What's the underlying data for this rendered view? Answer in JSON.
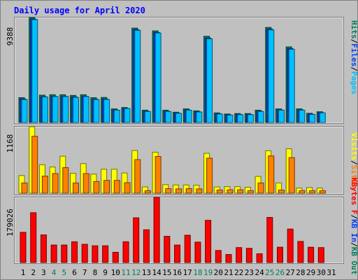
{
  "chart_data": {
    "type": "bar",
    "title": "Daily usage for April 2020",
    "days": [
      1,
      2,
      3,
      4,
      5,
      6,
      7,
      8,
      9,
      10,
      11,
      12,
      13,
      14,
      15,
      16,
      17,
      18,
      19,
      20,
      21,
      22,
      23,
      24,
      25,
      26,
      27,
      28,
      29,
      30,
      31
    ],
    "weekend_days": [
      4,
      5,
      11,
      12,
      18,
      19,
      25,
      26
    ],
    "colors": {
      "background": "#c0c0c0",
      "frame": "#808080",
      "title": "#0000ff",
      "hits": "#00805c",
      "files": "#0040ff",
      "pages": "#00c0ff",
      "visits": "#ffff00",
      "sites": "#ff8000",
      "kbin": "#0040ff",
      "kbout": "#00805c",
      "kbf": "#ff0000",
      "weekday_label": "#000000",
      "weekend_label": "#00805c"
    },
    "panels": [
      {
        "name": "hits-files-pages",
        "ytick": "9388",
        "ymax": 9388,
        "legend": [
          {
            "text": "Hits",
            "color_key": "hits"
          },
          {
            "text": "/",
            "color_key": "weekday_label"
          },
          {
            "text": "Files",
            "color_key": "files"
          },
          {
            "text": "/",
            "color_key": "weekday_label"
          },
          {
            "text": "Pages",
            "color_key": "pages"
          }
        ],
        "series": [
          {
            "name": "Hits",
            "color_key": "hits",
            "values": [
              2220,
              9388,
              2440,
              2480,
              2480,
              2420,
              2480,
              2220,
              2240,
              1220,
              1340,
              8440,
              1100,
              8190,
              1100,
              920,
              1220,
              1040,
              7710,
              860,
              760,
              800,
              800,
              1100,
              8500,
              1220,
              6760,
              1220,
              820,
              960,
              0
            ]
          },
          {
            "name": "Files",
            "color_key": "files",
            "values": [
              2100,
              9250,
              2300,
              2340,
              2340,
              2280,
              2340,
              2080,
              2100,
              1120,
              1260,
              8300,
              1000,
              8050,
              1000,
              840,
              1120,
              960,
              7550,
              780,
              680,
              720,
              720,
              1000,
              8350,
              1120,
              6600,
              1120,
              740,
              880,
              0
            ]
          },
          {
            "name": "Pages",
            "color_key": "pages",
            "values": [
              2050,
              9200,
              2280,
              2320,
              2320,
              2240,
              2320,
              2050,
              2060,
              1100,
              1250,
              8240,
              980,
              8000,
              980,
              820,
              1100,
              940,
              7480,
              760,
              660,
              700,
              700,
              980,
              8280,
              1100,
              6540,
              1100,
              720,
              860,
              0
            ]
          }
        ]
      },
      {
        "name": "visits-sites",
        "ytick": "1168",
        "ymax": 1168,
        "legend": [
          {
            "text": "Visits",
            "color_key": "visits"
          },
          {
            "text": "/",
            "color_key": "weekday_label"
          },
          {
            "text": "Sites",
            "color_key": "sites"
          }
        ],
        "series": [
          {
            "name": "Visits",
            "color_key": "visits",
            "values": [
              310,
              1168,
              500,
              460,
              650,
              350,
              520,
              335,
              420,
              420,
              355,
              750,
              110,
              720,
              150,
              145,
              145,
              140,
              700,
              110,
              115,
              115,
              105,
              295,
              745,
              180,
              780,
              90,
              100,
              90,
              0
            ]
          },
          {
            "name": "Sites",
            "color_key": "sites",
            "values": [
              180,
              1000,
              300,
              345,
              450,
              180,
              345,
              205,
              225,
              225,
              185,
              590,
              45,
              645,
              80,
              75,
              80,
              75,
              615,
              55,
              60,
              60,
              45,
              180,
              655,
              55,
              625,
              45,
              45,
              45,
              0
            ]
          }
        ]
      },
      {
        "name": "kbytes",
        "ytick": "179026",
        "ymax": 179026,
        "legend": [
          {
            "text": "KBytes F",
            "color_key": "kbf"
          },
          {
            "text": "/",
            "color_key": "weekday_label"
          },
          {
            "text": "KB In",
            "color_key": "kbin"
          },
          {
            "text": "/",
            "color_key": "weekday_label"
          },
          {
            "text": "KB Out",
            "color_key": "kbout"
          }
        ],
        "series": [
          {
            "name": "KBytes F",
            "color_key": "kbf",
            "values": [
              83000,
              137000,
              76000,
              48000,
              48000,
              57000,
              50000,
              46000,
              46000,
              28000,
              57000,
              123000,
              90000,
              179026,
              72000,
              48000,
              75000,
              56000,
              116000,
              33000,
              22000,
              41000,
              39000,
              24000,
              124000,
              42000,
              92000,
              58000,
              42000,
              41000,
              0
            ]
          }
        ]
      }
    ]
  }
}
